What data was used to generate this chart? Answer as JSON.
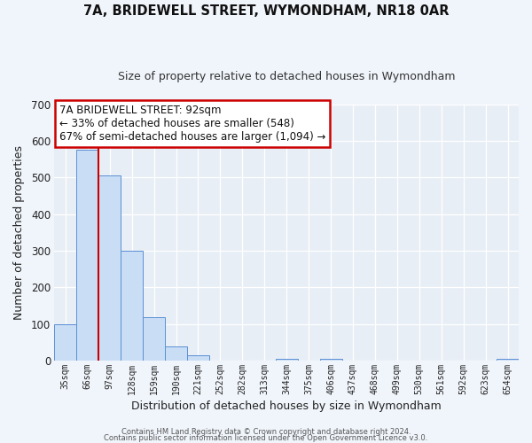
{
  "title": "7A, BRIDEWELL STREET, WYMONDHAM, NR18 0AR",
  "subtitle": "Size of property relative to detached houses in Wymondham",
  "xlabel": "Distribution of detached houses by size in Wymondham",
  "ylabel": "Number of detached properties",
  "bar_labels": [
    "35sqm",
    "66sqm",
    "97sqm",
    "128sqm",
    "159sqm",
    "190sqm",
    "221sqm",
    "252sqm",
    "282sqm",
    "313sqm",
    "344sqm",
    "375sqm",
    "406sqm",
    "437sqm",
    "468sqm",
    "499sqm",
    "530sqm",
    "561sqm",
    "592sqm",
    "623sqm",
    "654sqm"
  ],
  "bar_values": [
    100,
    575,
    505,
    300,
    118,
    38,
    15,
    0,
    0,
    0,
    5,
    0,
    5,
    0,
    0,
    0,
    0,
    0,
    0,
    0,
    5
  ],
  "bar_color": "#c9ddf5",
  "bar_edge_color": "#5b8fd4",
  "ylim": [
    0,
    700
  ],
  "yticks": [
    0,
    100,
    200,
    300,
    400,
    500,
    600,
    700
  ],
  "vline_color": "#cc0000",
  "annotation_text": "7A BRIDEWELL STREET: 92sqm\n← 33% of detached houses are smaller (548)\n67% of semi-detached houses are larger (1,094) →",
  "annotation_box_edge": "#cc0000",
  "bg_color": "#e8eef5",
  "fig_bg_color": "#f0f5fb",
  "grid_color": "#ffffff",
  "footer_line1": "Contains HM Land Registry data © Crown copyright and database right 2024.",
  "footer_line2": "Contains public sector information licensed under the Open Government Licence v3.0."
}
